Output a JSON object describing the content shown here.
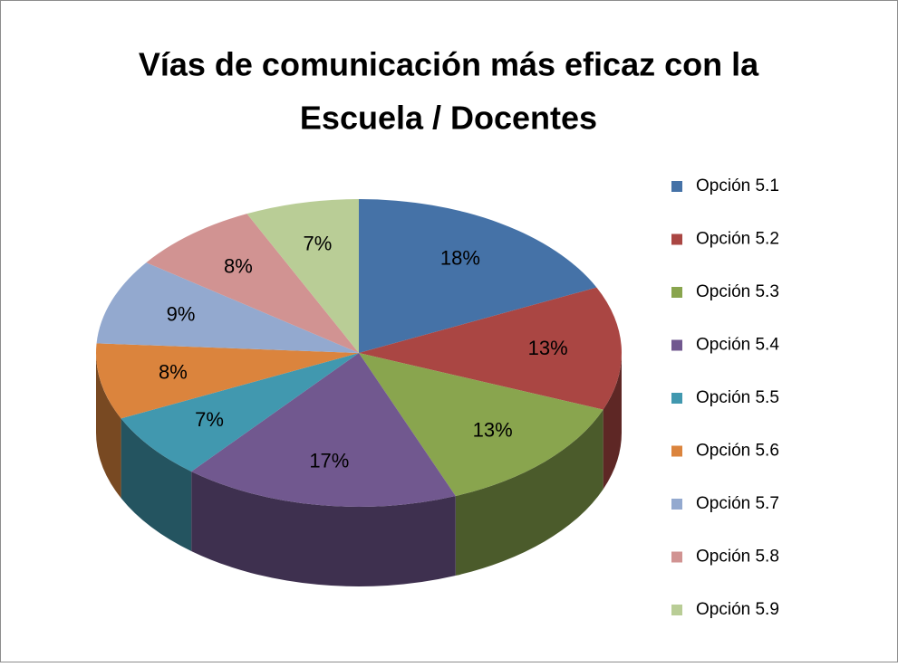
{
  "chart_data": {
    "type": "pie",
    "title": [
      "Vías de comunicación más eficaz con la",
      "Escuela / Docentes"
    ],
    "categories": [
      "Opción 5.1",
      "Opción 5.2",
      "Opción 5.3",
      "Opción 5.4",
      "Opción 5.5",
      "Opción 5.6",
      "Opción 5.7",
      "Opción 5.8",
      "Opción 5.9"
    ],
    "values": [
      18,
      13,
      13,
      17,
      7,
      8,
      9,
      8,
      7
    ],
    "value_labels": [
      "18%",
      "13%",
      "13%",
      "17%",
      "7%",
      "8%",
      "9%",
      "8%",
      "7%"
    ],
    "colors": [
      "#4572a7",
      "#aa4643",
      "#89a54e",
      "#71588f",
      "#4198af",
      "#db843d",
      "#93a9cf",
      "#d19392",
      "#b9cd96"
    ],
    "legend": "right"
  }
}
